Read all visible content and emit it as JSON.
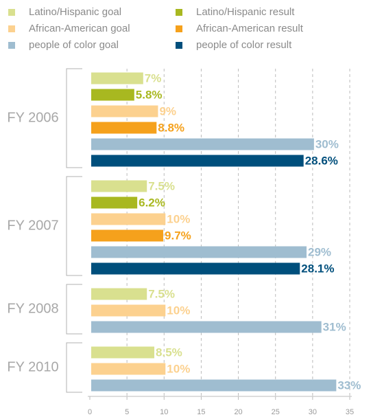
{
  "chart_data": {
    "type": "bar",
    "orientation": "horizontal",
    "categories": [
      "FY 2006",
      "FY 2007",
      "FY 2008",
      "FY 2010"
    ],
    "series": [
      {
        "name": "Latino/Hispanic goal",
        "color": "#d9e08f",
        "values": [
          7,
          7.5,
          7.5,
          8.5
        ],
        "value_labels": [
          "7%",
          "7.5%",
          "7.5%",
          "8.5%"
        ]
      },
      {
        "name": "Latino/Hispanic result",
        "color": "#a8b820",
        "values": [
          5.8,
          6.2,
          null,
          null
        ],
        "value_labels": [
          "5.8%",
          "6.2%",
          null,
          null
        ]
      },
      {
        "name": "African-American goal",
        "color": "#fcd18f",
        "values": [
          9,
          10,
          10,
          10
        ],
        "value_labels": [
          "9%",
          "10%",
          "10%",
          "10%"
        ]
      },
      {
        "name": "African-American result",
        "color": "#f5a11c",
        "values": [
          8.8,
          9.7,
          null,
          null
        ],
        "value_labels": [
          "8.8%",
          "9.7%",
          null,
          null
        ]
      },
      {
        "name": "people of color goal",
        "color": "#9fbdd0",
        "values": [
          30,
          29,
          31,
          33
        ],
        "value_labels": [
          "30%",
          "29%",
          "31%",
          "33%"
        ]
      },
      {
        "name": "people of color result",
        "color": "#004f7c",
        "values": [
          28.6,
          28.1,
          null,
          null
        ],
        "value_labels": [
          "28.6%",
          "28.1%",
          null,
          null
        ]
      }
    ],
    "xlim": [
      0,
      35
    ],
    "xticks": [
      0,
      5,
      10,
      15,
      20,
      25,
      30,
      35
    ],
    "grid": true
  }
}
